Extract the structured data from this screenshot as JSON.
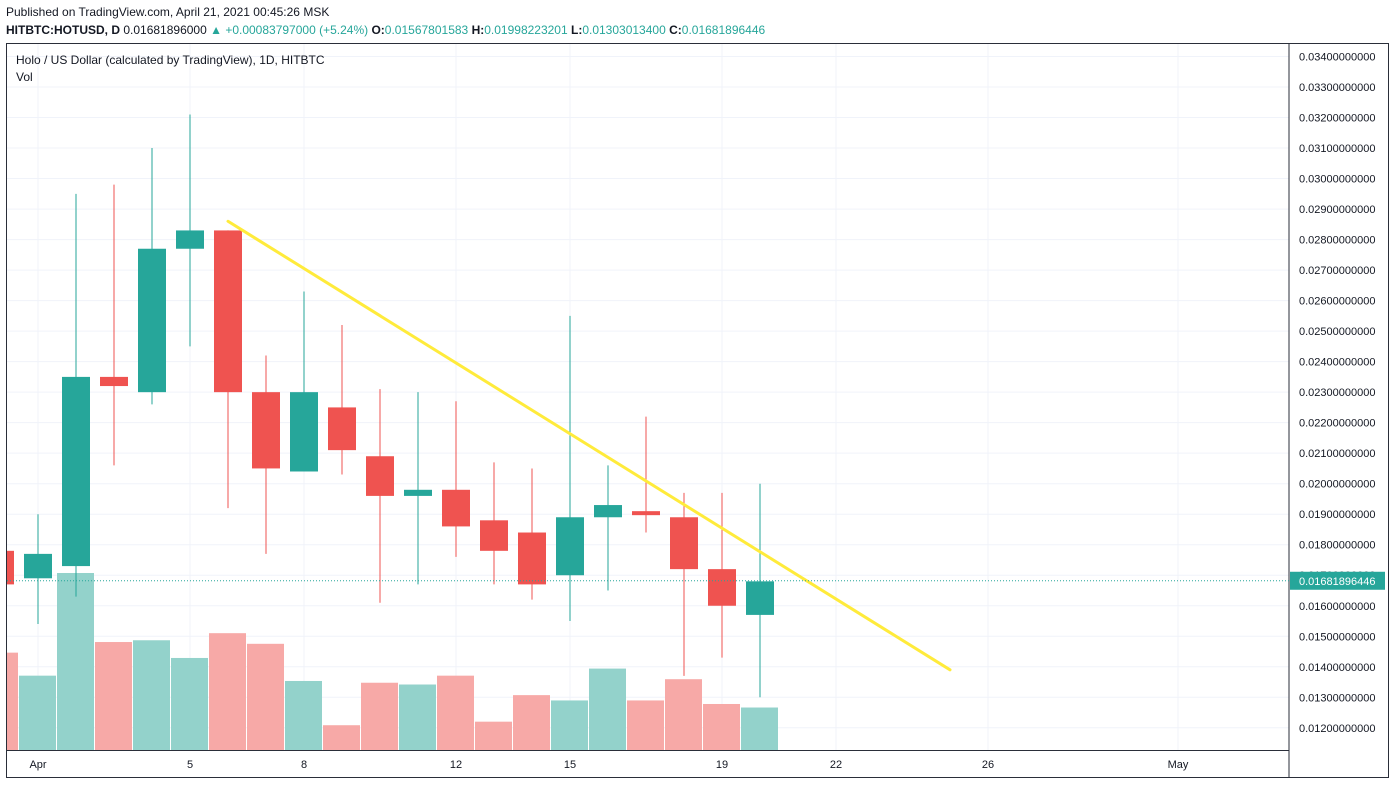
{
  "header": {
    "published": "Published on TradingView.com, April 21, 2021 00:45:26 MSK",
    "symbol": "HITBTC:HOTUSD, D",
    "price": "0.01681896000",
    "change": "▲ +0.00083797000 (+5.24%)",
    "o_label": "O:",
    "o_value": "0.01567801583",
    "h_label": "H:",
    "h_value": "0.01998223201",
    "l_label": "L:",
    "l_value": "0.01303013400",
    "c_label": "C:",
    "c_value": "0.01681896446"
  },
  "chart_title": "Holo / US Dollar (calculated by TradingView), 1D, HITBTC",
  "volume_label": "Vol",
  "colors": {
    "up": "#26a69a",
    "down": "#ef5350",
    "up_vol": "#93d2cb",
    "down_vol": "#f7a9a7",
    "trendline": "#ffeb3b",
    "grid": "#f0f3fa"
  },
  "chart_data": {
    "type": "candlestick",
    "ylim": [
      0.0115,
      0.0345
    ],
    "y_ticks": [
      "0.03400000000",
      "0.03300000000",
      "0.03200000000",
      "0.03100000000",
      "0.03000000000",
      "0.02900000000",
      "0.02800000000",
      "0.02700000000",
      "0.02600000000",
      "0.02500000000",
      "0.02400000000",
      "0.02300000000",
      "0.02200000000",
      "0.02100000000",
      "0.02000000000",
      "0.01900000000",
      "0.01800000000",
      "0.01700000000",
      "0.01600000000",
      "0.01500000000",
      "0.01400000000",
      "0.01300000000",
      "0.01200000000"
    ],
    "x_labels": [
      {
        "day": 1,
        "label": "Apr"
      },
      {
        "day": 5,
        "label": "5"
      },
      {
        "day": 8,
        "label": "8"
      },
      {
        "day": 12,
        "label": "12"
      },
      {
        "day": 15,
        "label": "15"
      },
      {
        "day": 19,
        "label": "19"
      },
      {
        "day": 22,
        "label": "22"
      },
      {
        "day": 26,
        "label": "26"
      },
      {
        "day": 31,
        "label": "May"
      }
    ],
    "last_price": "0.01681896446",
    "candles": [
      {
        "day": 0,
        "o": 0.0178,
        "h": 0.018,
        "l": 0.0167,
        "c": 0.0167,
        "v": 0.55
      },
      {
        "day": 1,
        "o": 0.0169,
        "h": 0.019,
        "l": 0.0154,
        "c": 0.0177,
        "v": 0.42
      },
      {
        "day": 2,
        "o": 0.0173,
        "h": 0.0295,
        "l": 0.0163,
        "c": 0.0235,
        "v": 1.0
      },
      {
        "day": 3,
        "o": 0.0235,
        "h": 0.0298,
        "l": 0.0206,
        "c": 0.0232,
        "v": 0.61
      },
      {
        "day": 4,
        "o": 0.023,
        "h": 0.031,
        "l": 0.0226,
        "c": 0.0277,
        "v": 0.62
      },
      {
        "day": 5,
        "o": 0.0277,
        "h": 0.0321,
        "l": 0.0245,
        "c": 0.0283,
        "v": 0.52
      },
      {
        "day": 6,
        "o": 0.0283,
        "h": 0.0283,
        "l": 0.0192,
        "c": 0.023,
        "v": 0.66
      },
      {
        "day": 7,
        "o": 0.023,
        "h": 0.0242,
        "l": 0.0177,
        "c": 0.0205,
        "v": 0.6
      },
      {
        "day": 8,
        "o": 0.0204,
        "h": 0.0263,
        "l": 0.0204,
        "c": 0.023,
        "v": 0.39
      },
      {
        "day": 9,
        "o": 0.0225,
        "h": 0.0252,
        "l": 0.0203,
        "c": 0.0211,
        "v": 0.14
      },
      {
        "day": 10,
        "o": 0.0209,
        "h": 0.0231,
        "l": 0.0161,
        "c": 0.0196,
        "v": 0.38
      },
      {
        "day": 11,
        "o": 0.0196,
        "h": 0.023,
        "l": 0.0167,
        "c": 0.0198,
        "v": 0.37
      },
      {
        "day": 12,
        "o": 0.0198,
        "h": 0.0227,
        "l": 0.0176,
        "c": 0.0186,
        "v": 0.42
      },
      {
        "day": 13,
        "o": 0.0188,
        "h": 0.0207,
        "l": 0.0167,
        "c": 0.0178,
        "v": 0.16
      },
      {
        "day": 14,
        "o": 0.0184,
        "h": 0.0205,
        "l": 0.0162,
        "c": 0.0167,
        "v": 0.31
      },
      {
        "day": 15,
        "o": 0.017,
        "h": 0.0255,
        "l": 0.0155,
        "c": 0.0189,
        "v": 0.28
      },
      {
        "day": 16,
        "o": 0.0189,
        "h": 0.0206,
        "l": 0.0165,
        "c": 0.0193,
        "v": 0.46
      },
      {
        "day": 17,
        "o": 0.0191,
        "h": 0.0222,
        "l": 0.0184,
        "c": 0.019,
        "v": 0.28
      },
      {
        "day": 18,
        "o": 0.0189,
        "h": 0.0197,
        "l": 0.0137,
        "c": 0.0172,
        "v": 0.4
      },
      {
        "day": 19,
        "o": 0.0172,
        "h": 0.0197,
        "l": 0.0143,
        "c": 0.016,
        "v": 0.26
      },
      {
        "day": 20,
        "o": 0.0157,
        "h": 0.02,
        "l": 0.013,
        "c": 0.0168,
        "v": 0.24
      }
    ],
    "trendline": {
      "start": {
        "day": 6,
        "price": 0.0286
      },
      "end": {
        "day": 25,
        "price": 0.0139
      }
    },
    "grid": true
  }
}
